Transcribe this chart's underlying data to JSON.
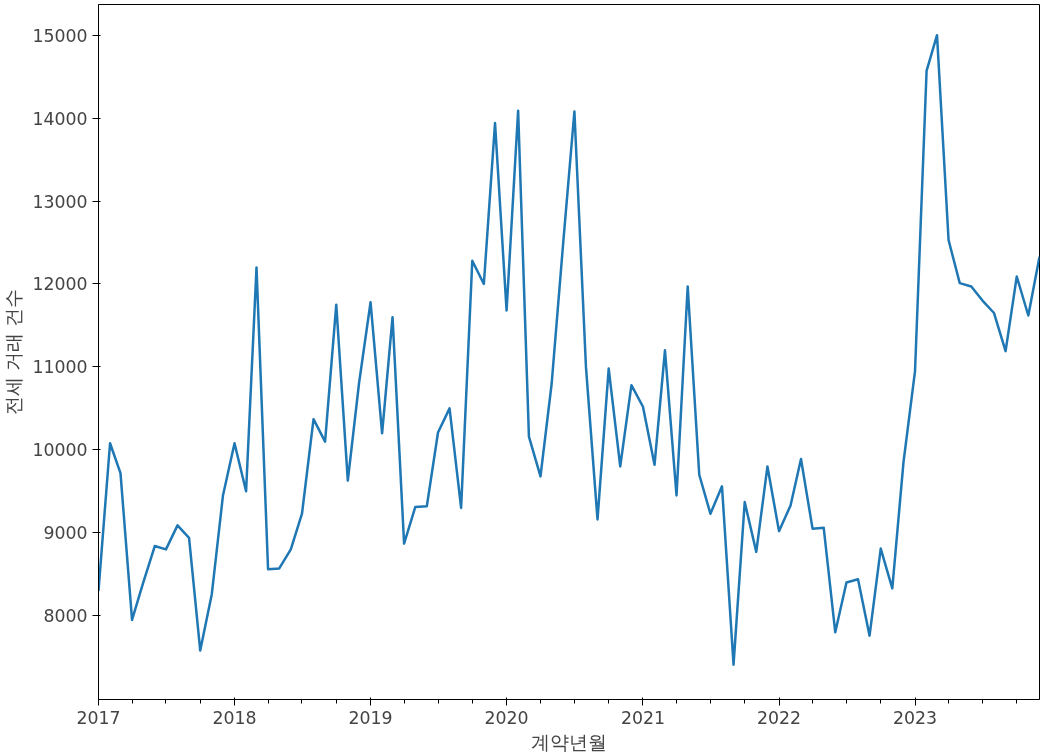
{
  "chart_data": {
    "type": "line",
    "xlabel": "계약년월",
    "ylabel": "전세 거래 건수",
    "x": [
      "2017-01",
      "2017-02",
      "2017-03",
      "2017-04",
      "2017-05",
      "2017-06",
      "2017-07",
      "2017-08",
      "2017-09",
      "2017-10",
      "2017-11",
      "2017-12",
      "2018-01",
      "2018-02",
      "2018-03",
      "2018-04",
      "2018-05",
      "2018-06",
      "2018-07",
      "2018-08",
      "2018-09",
      "2018-10",
      "2018-11",
      "2018-12",
      "2019-01",
      "2019-02",
      "2019-03",
      "2019-04",
      "2019-05",
      "2019-06",
      "2019-07",
      "2019-08",
      "2019-09",
      "2019-10",
      "2019-11",
      "2019-12",
      "2020-01",
      "2020-02",
      "2020-03",
      "2020-04",
      "2020-05",
      "2020-06",
      "2020-07",
      "2020-08",
      "2020-09",
      "2020-10",
      "2020-11",
      "2020-12",
      "2021-01",
      "2021-02",
      "2021-03",
      "2021-04",
      "2021-05",
      "2021-06",
      "2021-07",
      "2021-08",
      "2021-09",
      "2021-10",
      "2021-11",
      "2021-12",
      "2022-01",
      "2022-02",
      "2022-03",
      "2022-04",
      "2022-05",
      "2022-06",
      "2022-07",
      "2022-08",
      "2022-09",
      "2022-10",
      "2022-11",
      "2022-12",
      "2023-01",
      "2023-02",
      "2023-03",
      "2023-04",
      "2023-05",
      "2023-06",
      "2023-07",
      "2023-08",
      "2023-09",
      "2023-10",
      "2023-11",
      "2023-12"
    ],
    "series": [
      {
        "color": "#1f77b4",
        "values": [
          8300,
          10080,
          9720,
          7950,
          8400,
          8840,
          8800,
          9090,
          8940,
          7580,
          8260,
          9450,
          10080,
          9500,
          12200,
          8560,
          8570,
          8800,
          9230,
          10370,
          10100,
          11750,
          9630,
          10800,
          11780,
          10200,
          11600,
          8870,
          9310,
          9320,
          10210,
          10500,
          9300,
          12280,
          12000,
          13940,
          11680,
          14090,
          10160,
          9680,
          10800,
          12500,
          14080,
          11000,
          9160,
          10980,
          9800,
          10780,
          10520,
          9820,
          11200,
          9450,
          11970,
          9700,
          9230,
          9560,
          7410,
          9370,
          8770,
          9800,
          9020,
          9330,
          9890,
          9050,
          9060,
          7800,
          8400,
          8440,
          7760,
          8810,
          8330,
          9850,
          10950,
          14570,
          15000,
          12530,
          12010,
          11970,
          11800,
          11650,
          11190,
          12090,
          11620,
          12330
        ]
      }
    ],
    "xlim": [
      "2017-01",
      "2023-12"
    ],
    "xticks": [
      {
        "value": "2017-01",
        "label": "2017"
      },
      {
        "value": "2018-01",
        "label": "2018"
      },
      {
        "value": "2019-01",
        "label": "2019"
      },
      {
        "value": "2020-01",
        "label": "2020"
      },
      {
        "value": "2021-01",
        "label": "2021"
      },
      {
        "value": "2022-01",
        "label": "2022"
      },
      {
        "value": "2023-01",
        "label": "2023"
      }
    ],
    "ylim": [
      6990,
      15370
    ],
    "yticks": [
      8000,
      9000,
      10000,
      11000,
      12000,
      13000,
      14000,
      15000
    ],
    "grid": false
  }
}
